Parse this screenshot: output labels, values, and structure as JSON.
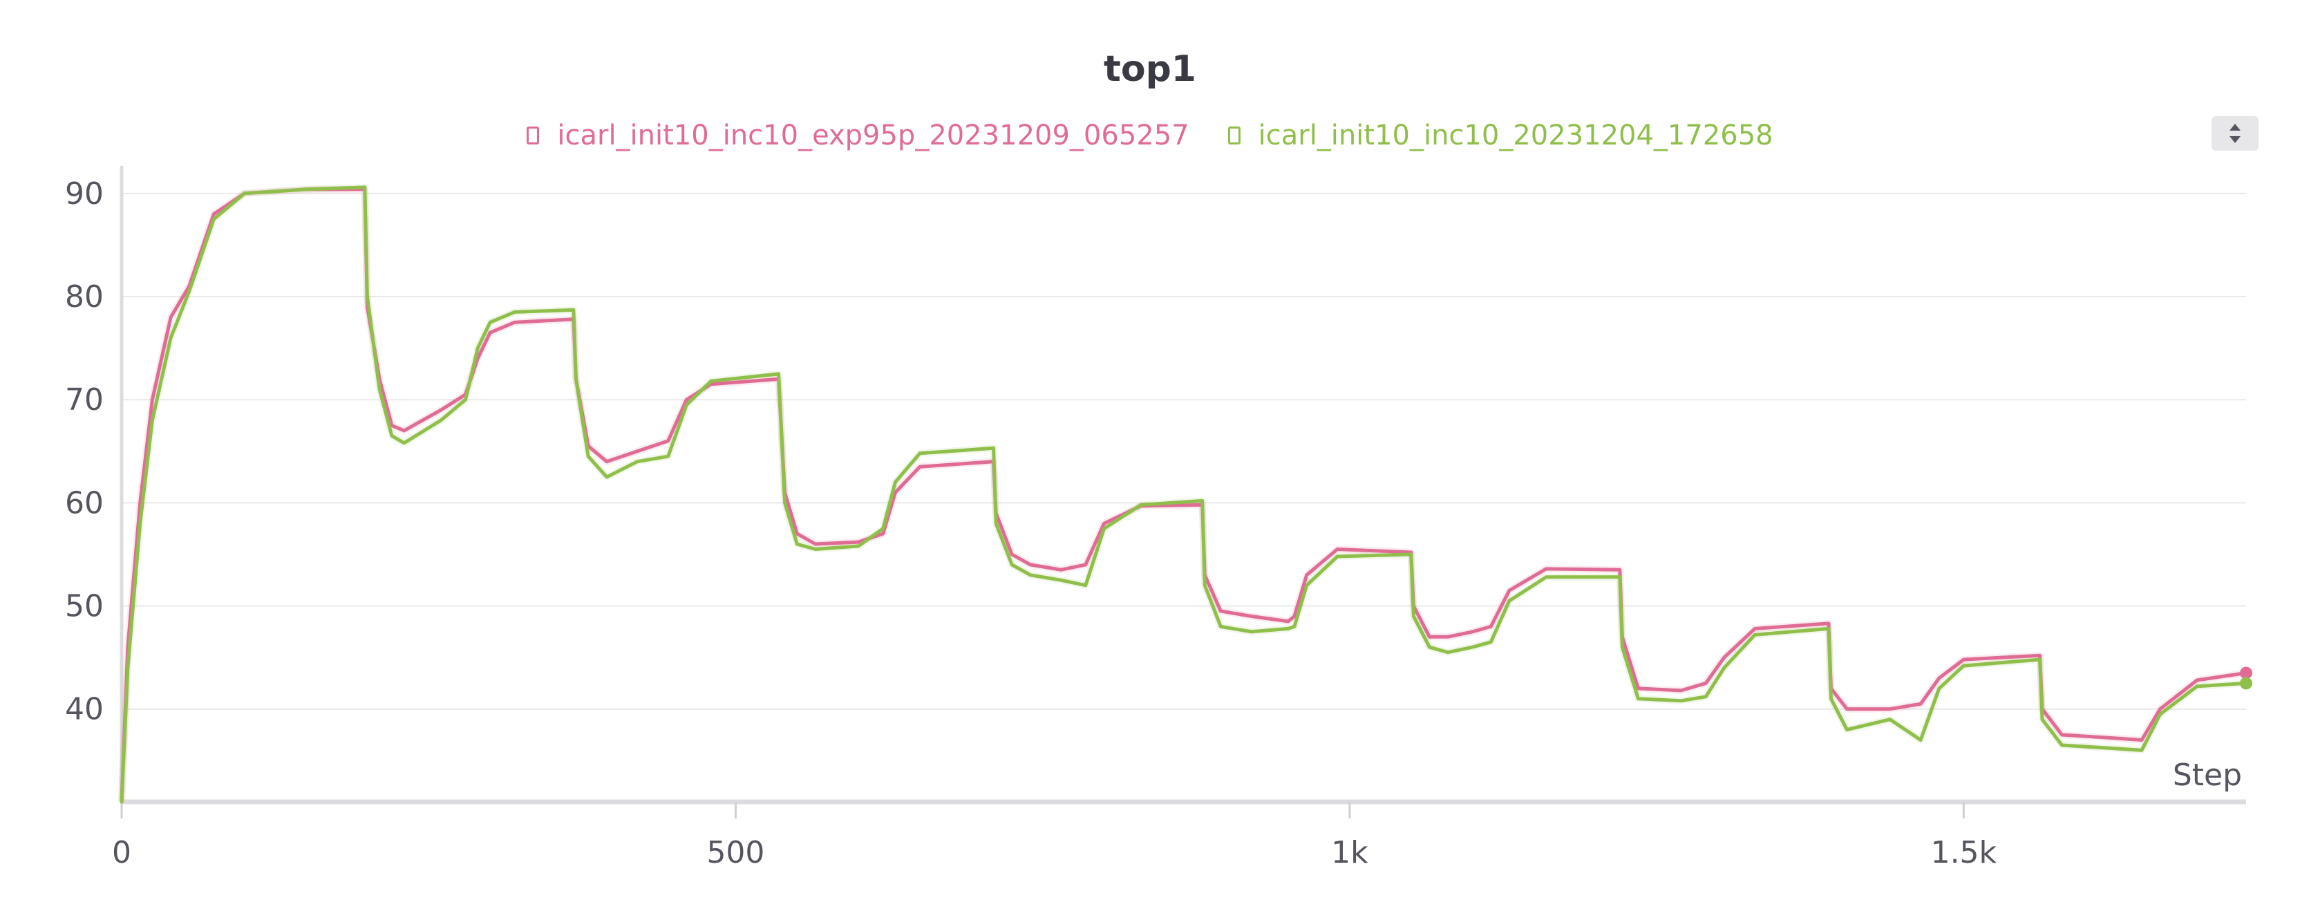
{
  "chart_data": {
    "type": "line",
    "title": "top1",
    "xlabel": "Step",
    "ylabel": "",
    "xlim": [
      0,
      1730
    ],
    "ylim": [
      31,
      92
    ],
    "x_ticks": [
      {
        "value": 0,
        "label": "0"
      },
      {
        "value": 500,
        "label": "500"
      },
      {
        "value": 1000,
        "label": "1k"
      },
      {
        "value": 1500,
        "label": "1.5k"
      }
    ],
    "y_ticks": [
      {
        "value": 40,
        "label": "40"
      },
      {
        "value": 50,
        "label": "50"
      },
      {
        "value": 60,
        "label": "60"
      },
      {
        "value": 70,
        "label": "70"
      },
      {
        "value": 80,
        "label": "80"
      },
      {
        "value": 90,
        "label": "90"
      }
    ],
    "grid": true,
    "legend_position": "top-center",
    "series": [
      {
        "name": "icarl_init10_inc10_exp95p_20231209_065257",
        "color": "#e06c96",
        "points": [
          [
            0,
            31
          ],
          [
            5,
            46
          ],
          [
            15,
            60
          ],
          [
            25,
            70
          ],
          [
            40,
            78
          ],
          [
            55,
            81
          ],
          [
            75,
            88
          ],
          [
            100,
            90
          ],
          [
            150,
            90.4
          ],
          [
            198,
            90.4
          ],
          [
            200,
            79
          ],
          [
            210,
            72
          ],
          [
            220,
            67.5
          ],
          [
            230,
            67
          ],
          [
            260,
            69
          ],
          [
            280,
            70.5
          ],
          [
            290,
            74
          ],
          [
            300,
            76.5
          ],
          [
            320,
            77.5
          ],
          [
            368,
            77.8
          ],
          [
            370,
            72
          ],
          [
            380,
            65.5
          ],
          [
            395,
            64
          ],
          [
            420,
            65
          ],
          [
            445,
            66
          ],
          [
            460,
            70
          ],
          [
            480,
            71.5
          ],
          [
            535,
            72
          ],
          [
            540,
            61
          ],
          [
            550,
            57
          ],
          [
            565,
            56
          ],
          [
            600,
            56.2
          ],
          [
            620,
            57
          ],
          [
            630,
            61
          ],
          [
            650,
            63.5
          ],
          [
            710,
            64
          ],
          [
            712,
            59
          ],
          [
            725,
            55
          ],
          [
            740,
            54
          ],
          [
            765,
            53.5
          ],
          [
            785,
            54
          ],
          [
            800,
            58
          ],
          [
            830,
            59.7
          ],
          [
            880,
            59.8
          ],
          [
            882,
            53
          ],
          [
            895,
            49.5
          ],
          [
            920,
            49
          ],
          [
            950,
            48.5
          ],
          [
            955,
            49
          ],
          [
            965,
            53
          ],
          [
            990,
            55.5
          ],
          [
            1050,
            55.2
          ],
          [
            1052,
            50
          ],
          [
            1065,
            47
          ],
          [
            1080,
            47
          ],
          [
            1100,
            47.5
          ],
          [
            1115,
            48
          ],
          [
            1130,
            51.5
          ],
          [
            1160,
            53.6
          ],
          [
            1220,
            53.5
          ],
          [
            1222,
            47
          ],
          [
            1235,
            42
          ],
          [
            1270,
            41.8
          ],
          [
            1290,
            42.5
          ],
          [
            1305,
            45
          ],
          [
            1330,
            47.8
          ],
          [
            1390,
            48.3
          ],
          [
            1392,
            42
          ],
          [
            1405,
            40
          ],
          [
            1440,
            40
          ],
          [
            1465,
            40.5
          ],
          [
            1480,
            43
          ],
          [
            1500,
            44.8
          ],
          [
            1562,
            45.2
          ],
          [
            1564,
            40
          ],
          [
            1580,
            37.5
          ],
          [
            1620,
            37.2
          ],
          [
            1645,
            37
          ],
          [
            1660,
            40
          ],
          [
            1690,
            42.8
          ],
          [
            1730,
            43.5
          ]
        ]
      },
      {
        "name": "icarl_init10_inc10_20231204_172658",
        "color": "#8fbf4a",
        "points": [
          [
            0,
            31
          ],
          [
            5,
            44
          ],
          [
            15,
            58
          ],
          [
            25,
            68
          ],
          [
            40,
            76
          ],
          [
            55,
            80.5
          ],
          [
            75,
            87.5
          ],
          [
            100,
            90
          ],
          [
            150,
            90.4
          ],
          [
            198,
            90.6
          ],
          [
            200,
            80
          ],
          [
            210,
            71
          ],
          [
            220,
            66.5
          ],
          [
            230,
            65.8
          ],
          [
            260,
            68
          ],
          [
            280,
            70
          ],
          [
            290,
            75
          ],
          [
            300,
            77.5
          ],
          [
            320,
            78.5
          ],
          [
            368,
            78.7
          ],
          [
            370,
            72
          ],
          [
            380,
            64.5
          ],
          [
            395,
            62.5
          ],
          [
            420,
            64
          ],
          [
            445,
            64.5
          ],
          [
            460,
            69.5
          ],
          [
            480,
            71.8
          ],
          [
            535,
            72.5
          ],
          [
            540,
            60
          ],
          [
            550,
            56
          ],
          [
            565,
            55.5
          ],
          [
            600,
            55.8
          ],
          [
            620,
            57.5
          ],
          [
            630,
            62
          ],
          [
            650,
            64.8
          ],
          [
            710,
            65.3
          ],
          [
            712,
            58
          ],
          [
            725,
            54
          ],
          [
            740,
            53
          ],
          [
            765,
            52.5
          ],
          [
            785,
            52
          ],
          [
            800,
            57.5
          ],
          [
            830,
            59.8
          ],
          [
            880,
            60.2
          ],
          [
            882,
            52
          ],
          [
            895,
            48
          ],
          [
            920,
            47.5
          ],
          [
            950,
            47.8
          ],
          [
            955,
            48
          ],
          [
            965,
            52
          ],
          [
            990,
            54.8
          ],
          [
            1050,
            55
          ],
          [
            1052,
            49
          ],
          [
            1065,
            46
          ],
          [
            1080,
            45.5
          ],
          [
            1100,
            46
          ],
          [
            1115,
            46.5
          ],
          [
            1130,
            50.5
          ],
          [
            1160,
            52.8
          ],
          [
            1220,
            52.8
          ],
          [
            1222,
            46
          ],
          [
            1235,
            41
          ],
          [
            1270,
            40.8
          ],
          [
            1290,
            41.2
          ],
          [
            1305,
            44
          ],
          [
            1330,
            47.2
          ],
          [
            1390,
            47.8
          ],
          [
            1392,
            41
          ],
          [
            1405,
            38
          ],
          [
            1440,
            39
          ],
          [
            1465,
            37
          ],
          [
            1480,
            42
          ],
          [
            1500,
            44.2
          ],
          [
            1562,
            44.8
          ],
          [
            1564,
            39
          ],
          [
            1580,
            36.5
          ],
          [
            1620,
            36.2
          ],
          [
            1645,
            36
          ],
          [
            1660,
            39.5
          ],
          [
            1690,
            42.2
          ],
          [
            1730,
            42.5
          ]
        ]
      }
    ]
  }
}
